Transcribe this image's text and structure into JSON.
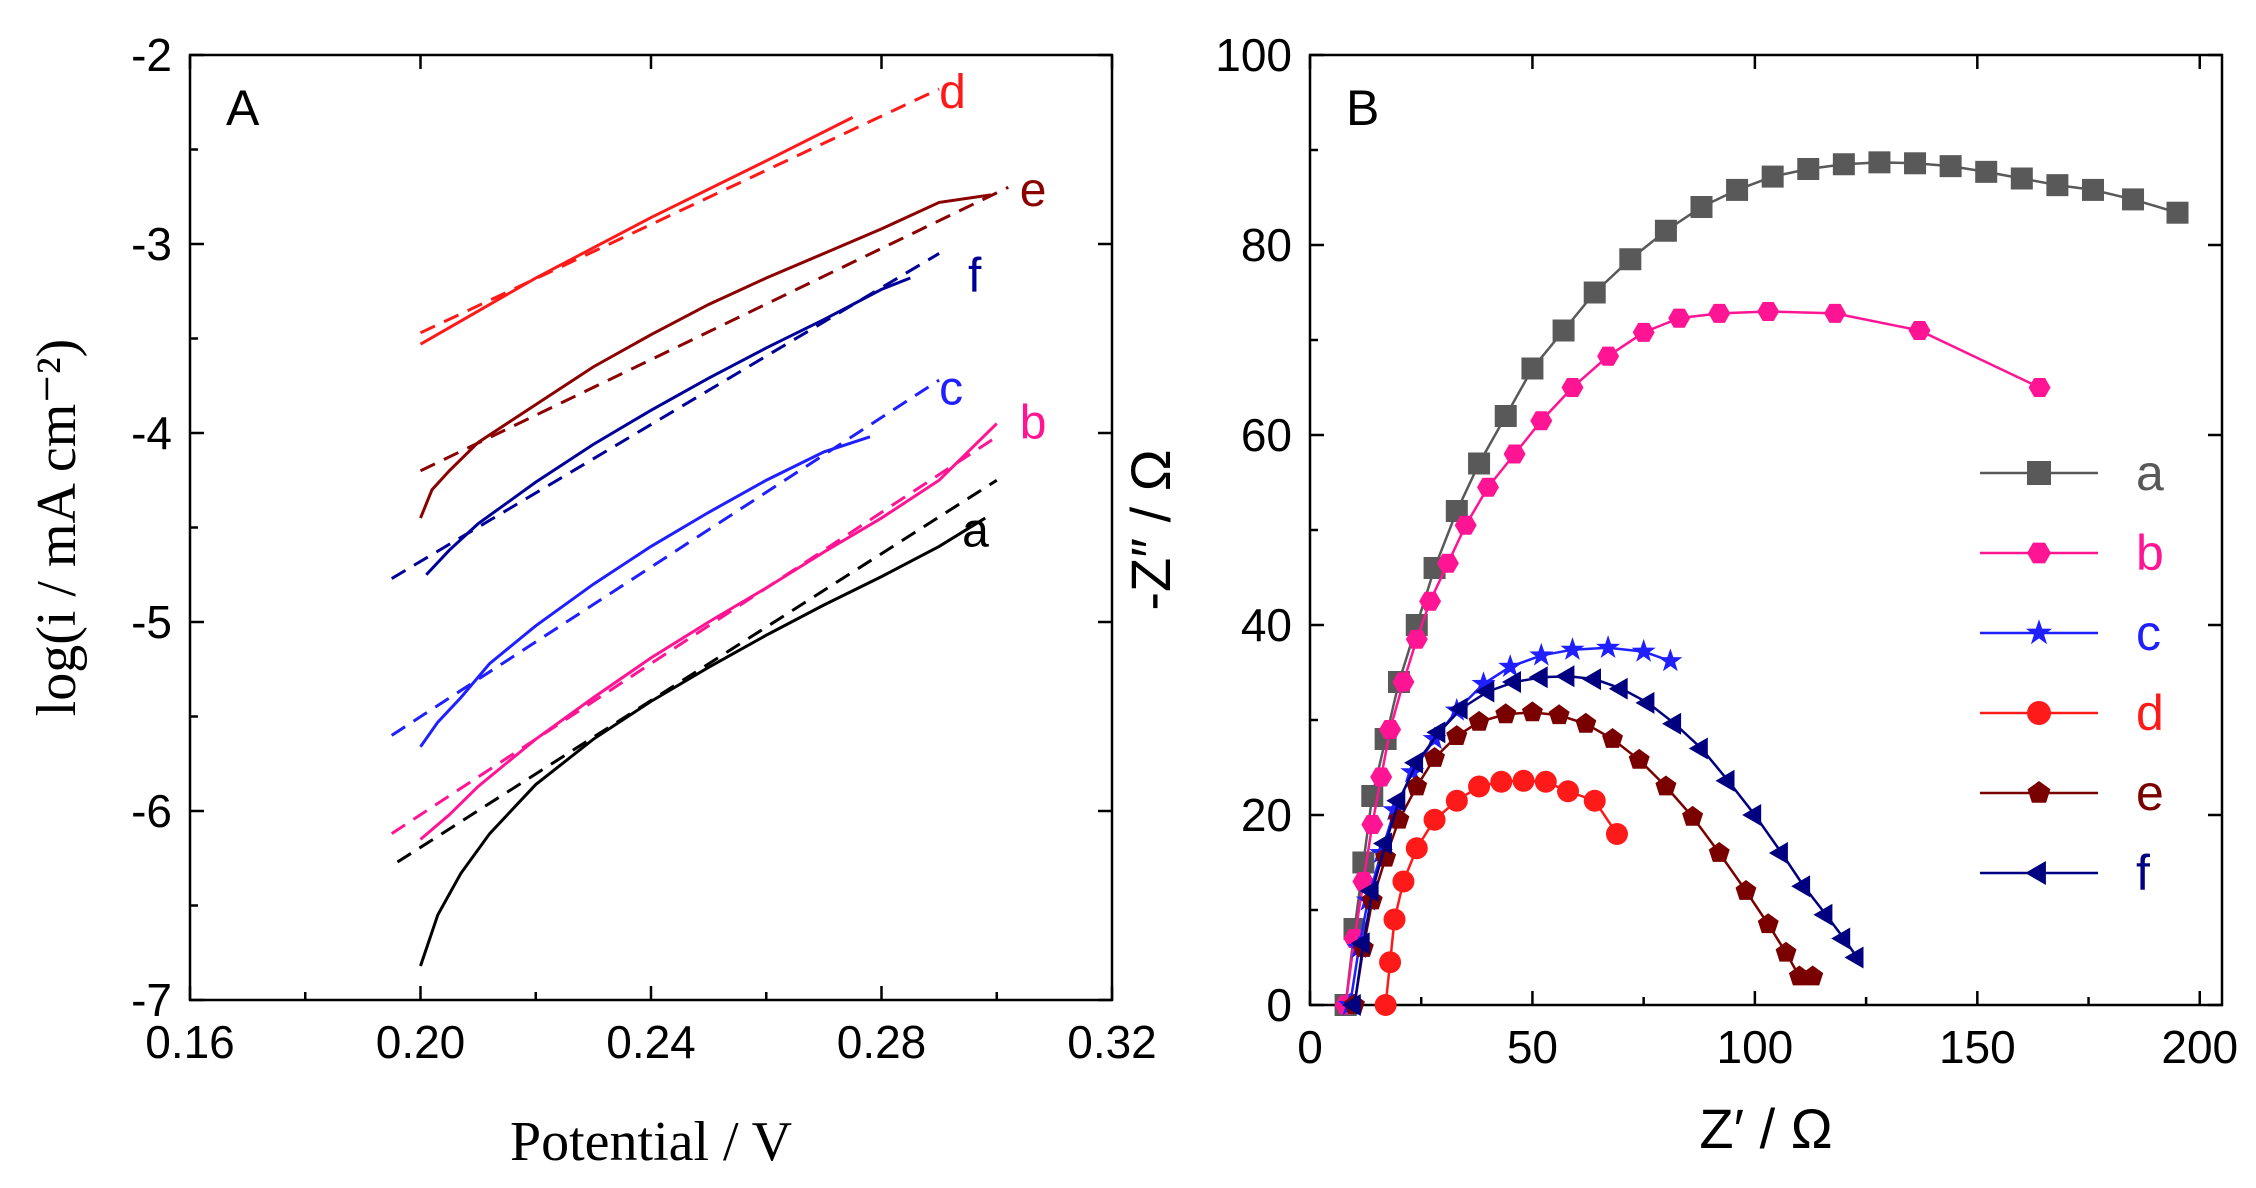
{
  "chart_data": [
    {
      "type": "line",
      "panel_label": "A",
      "xlabel": "Potential / V",
      "ylabel": "log(i / mA cm⁻²)",
      "xlim": [
        0.16,
        0.32
      ],
      "ylim": [
        -7,
        -2
      ],
      "xticks": [
        "0.16",
        "0.20",
        "0.24",
        "0.28",
        "0.32"
      ],
      "yticks": [
        "-7",
        "-6",
        "-5",
        "-4",
        "-3",
        "-2"
      ],
      "grid": false,
      "series": [
        {
          "name": "a",
          "color": "#000000",
          "measured": {
            "x": [
              0.2,
              0.203,
              0.207,
              0.212,
              0.22,
              0.23,
              0.24,
              0.25,
              0.26,
              0.27,
              0.28,
              0.29,
              0.298
            ],
            "y": [
              -6.82,
              -6.55,
              -6.33,
              -6.12,
              -5.86,
              -5.62,
              -5.42,
              -5.24,
              -5.07,
              -4.91,
              -4.76,
              -4.6,
              -4.45
            ]
          },
          "fit": {
            "x": [
              0.196,
              0.3
            ],
            "y": [
              -6.27,
              -4.25
            ]
          }
        },
        {
          "name": "b",
          "color": "#ff1493",
          "measured": {
            "x": [
              0.2,
              0.205,
              0.21,
              0.22,
              0.23,
              0.24,
              0.25,
              0.26,
              0.27,
              0.28,
              0.29,
              0.3
            ],
            "y": [
              -6.15,
              -6.02,
              -5.87,
              -5.62,
              -5.4,
              -5.19,
              -5.0,
              -4.82,
              -4.63,
              -4.45,
              -4.25,
              -3.95
            ]
          },
          "fit": {
            "x": [
              0.195,
              0.3
            ],
            "y": [
              -6.12,
              -4.02
            ]
          }
        },
        {
          "name": "c",
          "color": "#1f1fff",
          "measured": {
            "x": [
              0.2,
              0.203,
              0.207,
              0.212,
              0.22,
              0.23,
              0.24,
              0.25,
              0.26,
              0.27,
              0.278
            ],
            "y": [
              -5.66,
              -5.53,
              -5.4,
              -5.22,
              -5.02,
              -4.8,
              -4.6,
              -4.42,
              -4.25,
              -4.1,
              -4.02
            ]
          },
          "fit": {
            "x": [
              0.195,
              0.29
            ],
            "y": [
              -5.6,
              -3.72
            ]
          }
        },
        {
          "name": "d",
          "color": "#ff1a1a",
          "measured": {
            "x": [
              0.2,
              0.22,
              0.24,
              0.26,
              0.275
            ],
            "y": [
              -3.53,
              -3.18,
              -2.86,
              -2.56,
              -2.33
            ]
          },
          "fit": {
            "x": [
              0.2,
              0.29
            ],
            "y": [
              -3.47,
              -2.18
            ]
          }
        },
        {
          "name": "e",
          "color": "#8b0000",
          "measured": {
            "x": [
              0.2,
              0.202,
              0.205,
              0.21,
              0.22,
              0.23,
              0.24,
              0.25,
              0.26,
              0.27,
              0.28,
              0.29,
              0.299
            ],
            "y": [
              -4.45,
              -4.3,
              -4.2,
              -4.05,
              -3.85,
              -3.65,
              -3.48,
              -3.32,
              -3.18,
              -3.05,
              -2.92,
              -2.78,
              -2.74
            ]
          },
          "fit": {
            "x": [
              0.2,
              0.302
            ],
            "y": [
              -4.2,
              -2.7
            ]
          }
        },
        {
          "name": "f",
          "color": "#000099",
          "measured": {
            "x": [
              0.201,
              0.205,
              0.21,
              0.22,
              0.23,
              0.24,
              0.25,
              0.26,
              0.27,
              0.28,
              0.285
            ],
            "y": [
              -4.75,
              -4.62,
              -4.48,
              -4.26,
              -4.06,
              -3.88,
              -3.71,
              -3.55,
              -3.4,
              -3.24,
              -3.18
            ]
          },
          "fit": {
            "x": [
              0.195,
              0.29
            ],
            "y": [
              -4.77,
              -3.05
            ]
          }
        }
      ]
    },
    {
      "type": "scatter",
      "panel_label": "B",
      "xlabel": "Z′ / Ω",
      "ylabel": "-Z″ / Ω",
      "xlim": [
        0,
        205
      ],
      "ylim": [
        0,
        100
      ],
      "xticks": [
        "0",
        "50",
        "100",
        "150",
        "200"
      ],
      "yticks": [
        "0",
        "20",
        "40",
        "60",
        "80",
        "100"
      ],
      "grid": false,
      "legend": "right",
      "series": [
        {
          "name": "a",
          "color": "#595959",
          "marker": "square",
          "x": [
            8,
            10,
            12,
            14,
            17,
            20,
            24,
            28,
            33,
            38,
            44,
            50,
            57,
            64,
            72,
            80,
            88,
            96,
            104,
            112,
            120,
            128,
            136,
            144,
            152,
            160,
            168,
            176,
            185,
            195
          ],
          "y": [
            0,
            8,
            15,
            22,
            28,
            34,
            40,
            46,
            52,
            57,
            62,
            67,
            71,
            75,
            78.5,
            81.5,
            84,
            85.8,
            87.2,
            88,
            88.5,
            88.7,
            88.6,
            88.3,
            87.7,
            87,
            86.3,
            85.8,
            84.8,
            83.4
          ]
        },
        {
          "name": "b",
          "color": "#ff1493",
          "marker": "hexagon",
          "x": [
            8,
            10,
            12,
            14,
            16,
            18,
            21,
            24,
            27,
            31,
            35,
            40,
            46,
            52,
            59,
            67,
            75,
            83,
            92,
            103,
            118,
            137,
            164
          ],
          "y": [
            0,
            7,
            13,
            19,
            24,
            29,
            34,
            38.5,
            42.5,
            46.5,
            50.5,
            54.5,
            58,
            61.5,
            65,
            68.3,
            70.8,
            72.3,
            72.8,
            73,
            72.8,
            71,
            65
          ]
        },
        {
          "name": "c",
          "color": "#1f1fff",
          "marker": "star",
          "x": [
            9,
            11,
            13,
            16,
            19,
            23,
            28,
            33,
            39,
            45,
            52,
            59,
            67,
            75,
            81
          ],
          "y": [
            0,
            6,
            11,
            16,
            20.5,
            24.5,
            28,
            31,
            33.8,
            35.6,
            36.8,
            37.4,
            37.6,
            37.2,
            36.2
          ]
        },
        {
          "name": "d",
          "color": "#ff1a1a",
          "marker": "circle",
          "x": [
            17,
            18,
            19,
            21,
            24,
            28,
            33,
            38,
            43,
            48,
            53,
            58,
            64,
            69
          ],
          "y": [
            0,
            4.5,
            9,
            13,
            16.5,
            19.5,
            21.5,
            23,
            23.5,
            23.6,
            23.5,
            22.5,
            21.5,
            18
          ]
        },
        {
          "name": "e",
          "color": "#7a0000",
          "marker": "pentagon",
          "x": [
            10,
            12,
            14,
            17,
            20,
            24,
            28,
            33,
            38,
            44,
            50,
            56,
            62,
            68,
            74,
            80,
            86,
            92,
            98,
            103,
            107,
            110,
            113
          ],
          "y": [
            0,
            6,
            11,
            15.5,
            19.5,
            23,
            26,
            28.3,
            29.8,
            30.6,
            30.8,
            30.5,
            29.6,
            28,
            25.8,
            23,
            19.8,
            16,
            12,
            8.5,
            5.5,
            3,
            3
          ]
        },
        {
          "name": "f",
          "color": "#000080",
          "marker": "triangle-left",
          "x": [
            10,
            12,
            14,
            17,
            20,
            24,
            29,
            34,
            40,
            46,
            52,
            58,
            64,
            70,
            76,
            82,
            88,
            94,
            100,
            106,
            111,
            116,
            120,
            123
          ],
          "y": [
            0,
            6.5,
            12,
            17,
            21.5,
            25.5,
            28.7,
            31.2,
            33,
            34,
            34.5,
            34.6,
            34.3,
            33.3,
            31.8,
            29.6,
            27,
            23.6,
            20,
            16,
            12.5,
            9.5,
            7,
            5
          ]
        }
      ]
    }
  ]
}
